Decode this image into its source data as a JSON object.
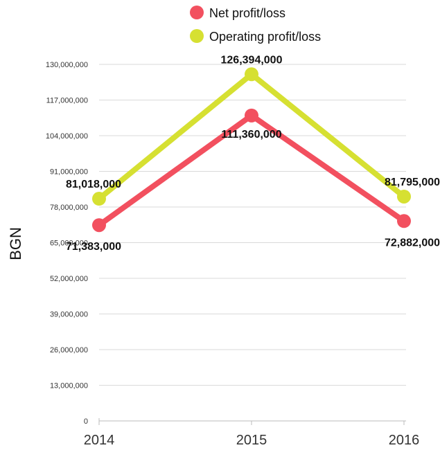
{
  "chart_data": {
    "type": "line",
    "categories": [
      "2014",
      "2015",
      "2016"
    ],
    "ylabel": "BGN",
    "ylim": [
      0,
      130000000
    ],
    "yticks": [
      0,
      13000000,
      26000000,
      39000000,
      52000000,
      65000000,
      78000000,
      91000000,
      104000000,
      117000000,
      130000000
    ],
    "ytick_labels": [
      "0",
      "13,000,000",
      "26,000,000",
      "39,000,000",
      "52,000,000",
      "65,000,000",
      "78,000,000",
      "91,000,000",
      "104,000,000",
      "117,000,000",
      "130,000,000"
    ],
    "grid": true,
    "legend_position": "top-center",
    "series": [
      {
        "name": "Net profit/loss",
        "color": "#f2505f",
        "values": [
          71383000,
          111360000,
          72882000
        ],
        "labels": [
          "71,383,000",
          "111,360,000",
          "72,882,000"
        ]
      },
      {
        "name": "Operating profit/loss",
        "color": "#d6e032",
        "values": [
          81018000,
          126394000,
          81795000
        ],
        "labels": [
          "81,018,000",
          "126,394,000",
          "81,795,000"
        ]
      }
    ]
  }
}
